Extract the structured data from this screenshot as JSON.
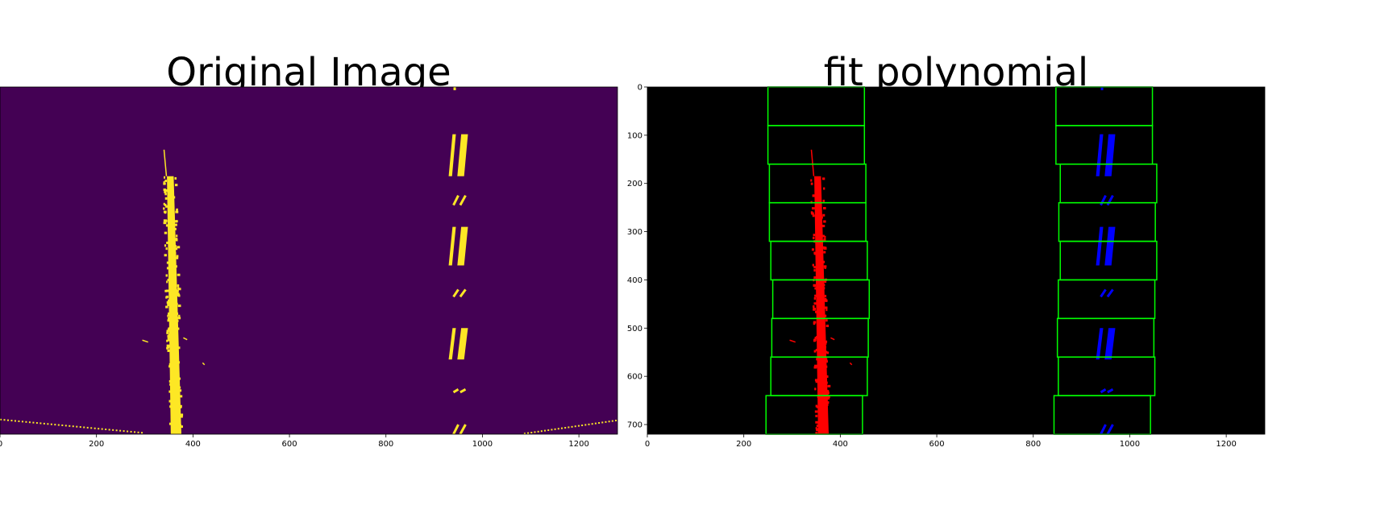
{
  "chart_data": [
    {
      "type": "heatmap",
      "title": "Original Image",
      "xlim": [
        0,
        1280
      ],
      "ylim": [
        720,
        0
      ],
      "xticks": [
        0,
        200,
        400,
        600,
        800,
        1000,
        1200
      ],
      "yticks": [],
      "colors": {
        "background": "#440154",
        "pixels": "#fde725"
      },
      "left_lane": {
        "x_top": 350,
        "x_bottom": 362,
        "y_top": 185,
        "y_bottom": 720
      },
      "right_lane_dashes": [
        {
          "y": [
            98,
            185
          ],
          "x": [
            930,
            970
          ]
        },
        {
          "y": [
            225,
            245
          ],
          "x": [
            940,
            965
          ]
        },
        {
          "y": [
            290,
            370
          ],
          "x": [
            930,
            970
          ]
        },
        {
          "y": [
            420,
            435
          ],
          "x": [
            940,
            965
          ]
        },
        {
          "y": [
            500,
            565
          ],
          "x": [
            930,
            970
          ]
        },
        {
          "y": [
            627,
            633
          ],
          "x": [
            940,
            965
          ]
        },
        {
          "y": [
            700,
            720
          ],
          "x": [
            940,
            965
          ]
        }
      ]
    },
    {
      "type": "heatmap",
      "title": "fit polynomial",
      "xlim": [
        0,
        1280
      ],
      "ylim": [
        720,
        0
      ],
      "xticks": [
        0,
        200,
        400,
        600,
        800,
        1000,
        1200
      ],
      "yticks": [
        0,
        100,
        200,
        300,
        400,
        500,
        600,
        700
      ],
      "colors": {
        "background": "#000000",
        "left_pixels": "#ff0000",
        "right_pixels": "#0000ff",
        "windows": "#00ff00"
      },
      "left_windows": [
        {
          "y": [
            0,
            80
          ],
          "x": [
            250,
            450
          ]
        },
        {
          "y": [
            80,
            160
          ],
          "x": [
            250,
            450
          ]
        },
        {
          "y": [
            160,
            240
          ],
          "x": [
            253,
            453
          ]
        },
        {
          "y": [
            240,
            320
          ],
          "x": [
            253,
            453
          ]
        },
        {
          "y": [
            320,
            400
          ],
          "x": [
            256,
            456
          ]
        },
        {
          "y": [
            400,
            480
          ],
          "x": [
            260,
            460
          ]
        },
        {
          "y": [
            480,
            560
          ],
          "x": [
            258,
            458
          ]
        },
        {
          "y": [
            560,
            640
          ],
          "x": [
            256,
            456
          ]
        },
        {
          "y": [
            640,
            720
          ],
          "x": [
            246,
            446
          ]
        }
      ],
      "right_windows": [
        {
          "y": [
            0,
            80
          ],
          "x": [
            847,
            1047
          ]
        },
        {
          "y": [
            80,
            160
          ],
          "x": [
            847,
            1047
          ]
        },
        {
          "y": [
            160,
            240
          ],
          "x": [
            856,
            1056
          ]
        },
        {
          "y": [
            240,
            320
          ],
          "x": [
            853,
            1053
          ]
        },
        {
          "y": [
            320,
            400
          ],
          "x": [
            856,
            1056
          ]
        },
        {
          "y": [
            400,
            480
          ],
          "x": [
            852,
            1052
          ]
        },
        {
          "y": [
            480,
            560
          ],
          "x": [
            850,
            1050
          ]
        },
        {
          "y": [
            560,
            640
          ],
          "x": [
            852,
            1052
          ]
        },
        {
          "y": [
            640,
            720
          ],
          "x": [
            843,
            1043
          ]
        }
      ]
    }
  ]
}
